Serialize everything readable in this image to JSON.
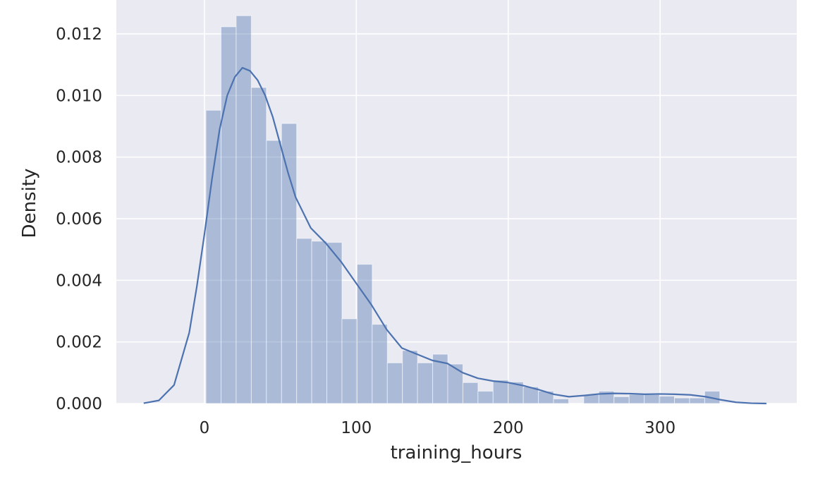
{
  "chart_data": {
    "type": "bar",
    "title": "",
    "xlabel": "training_hours",
    "ylabel": "Density",
    "xlim": [
      -58,
      390
    ],
    "ylim": [
      0,
      0.0131
    ],
    "grid": true,
    "legend": "none",
    "colors": {
      "background": "#eaeaf2",
      "grid": "#ffffff",
      "bar": "#4c72b0",
      "kde_line": "#4c72b0",
      "text": "#262626"
    },
    "x_ticks": [
      {
        "value": 0,
        "label": "0"
      },
      {
        "value": 100,
        "label": "100"
      },
      {
        "value": 200,
        "label": "200"
      },
      {
        "value": 300,
        "label": "300"
      }
    ],
    "y_ticks": [
      {
        "value": 0.0,
        "label": "0.000"
      },
      {
        "value": 0.002,
        "label": "0.002"
      },
      {
        "value": 0.004,
        "label": "0.004"
      },
      {
        "value": 0.006,
        "label": "0.006"
      },
      {
        "value": 0.008,
        "label": "0.008"
      },
      {
        "value": 0.01,
        "label": "0.010"
      },
      {
        "value": 0.012,
        "label": "0.012"
      }
    ],
    "histogram": {
      "bin_start": 1,
      "bin_width": 9.95,
      "values": [
        0.00952,
        0.01223,
        0.01259,
        0.01026,
        0.00854,
        0.00909,
        0.00536,
        0.00527,
        0.00523,
        0.00275,
        0.00452,
        0.00257,
        0.00132,
        0.00172,
        0.00132,
        0.0016,
        0.00128,
        0.00068,
        0.0004,
        0.00076,
        0.0007,
        0.00054,
        0.0004,
        0.00015,
        0.0,
        0.00029,
        0.0004,
        0.00022,
        0.00029,
        0.00029,
        0.00024,
        0.00018,
        0.00018,
        0.0004
      ]
    },
    "kde": {
      "x": [
        -40,
        -30,
        -20,
        -10,
        -5,
        0,
        5,
        10,
        15,
        20,
        25,
        30,
        35,
        40,
        45,
        50,
        55,
        60,
        70,
        80,
        90,
        100,
        110,
        120,
        130,
        140,
        150,
        160,
        170,
        180,
        190,
        200,
        210,
        220,
        230,
        240,
        250,
        260,
        270,
        280,
        290,
        300,
        310,
        320,
        330,
        340,
        350,
        360,
        370
      ],
      "y": [
        1e-05,
        0.0001,
        0.0006,
        0.0023,
        0.0038,
        0.0055,
        0.0073,
        0.0089,
        0.01,
        0.0106,
        0.0109,
        0.0108,
        0.0105,
        0.01,
        0.0093,
        0.0084,
        0.0075,
        0.0067,
        0.0057,
        0.0052,
        0.0046,
        0.0039,
        0.0032,
        0.0024,
        0.0018,
        0.0016,
        0.0014,
        0.0013,
        0.001,
        0.00082,
        0.00073,
        0.00068,
        0.00058,
        0.00045,
        0.0003,
        0.00022,
        0.00026,
        0.00031,
        0.00033,
        0.00032,
        0.0003,
        0.00031,
        0.0003,
        0.00028,
        0.00022,
        0.00012,
        4e-05,
        1e-05,
        0.0
      ]
    }
  }
}
